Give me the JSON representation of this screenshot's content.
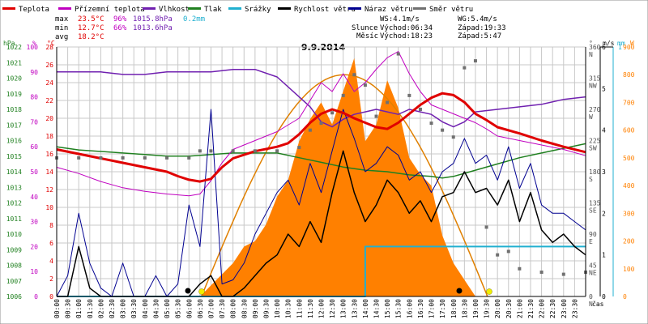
{
  "colors": {
    "teplota": "#e00000",
    "prizemni": "#c000c0",
    "vlhkost": "#7020b0",
    "tlak": "#208020",
    "srazky": "#20b0d0",
    "rychlost": "#000000",
    "naraz": "#000090",
    "smer": "#707070",
    "solar": "#ff8000",
    "sunline": "#e08000",
    "grid": "#c8c8c8"
  },
  "legend": [
    {
      "key": "teplota",
      "label": "Teplota"
    },
    {
      "key": "prizemni",
      "label": "Přízemní teplota"
    },
    {
      "key": "vlhkost",
      "label": "Vlhkost"
    },
    {
      "key": "tlak",
      "label": "Tlak"
    },
    {
      "key": "srazky",
      "label": "Srážky"
    },
    {
      "key": "rychlost",
      "label": "Rychlost větru"
    },
    {
      "key": "naraz",
      "label": "Náraz větru"
    },
    {
      "key": "smer",
      "label": "Směr větru"
    }
  ],
  "stats": {
    "max": {
      "label": "max",
      "temp": "23.5°C",
      "hum": "96%",
      "press": "1015.8hPa",
      "rain": "0.2mm"
    },
    "min": {
      "label": "min",
      "temp": "12.7°C",
      "hum": "66%",
      "press": "1013.6hPa"
    },
    "avg": {
      "label": "avg",
      "temp": "18.2°C"
    }
  },
  "wind_info": {
    "ws": "WS:4.1m/s",
    "wg": "WG:5.4m/s"
  },
  "sun_info": {
    "label": "Slunce",
    "rise": "Východ:06:34",
    "set": "Západ:19:33"
  },
  "moon_info": {
    "label": "Měsíc",
    "rise": "Východ:18:23",
    "set": "Západ:5:47"
  },
  "chart_data": {
    "type": "line",
    "title": "9.9.2014",
    "xlabel": "čas",
    "x_range": [
      0,
      24
    ],
    "x_ticks": [
      "00:00",
      "00:30",
      "01:00",
      "01:30",
      "02:00",
      "02:30",
      "03:00",
      "03:30",
      "04:00",
      "04:30",
      "05:00",
      "05:30",
      "06:00",
      "06:30",
      "07:00",
      "07:30",
      "08:00",
      "08:30",
      "09:00",
      "09:30",
      "10:00",
      "10:30",
      "11:00",
      "11:30",
      "12:00",
      "12:30",
      "13:00",
      "13:30",
      "14:00",
      "14:30",
      "15:00",
      "15:30",
      "16:00",
      "16:30",
      "17:00",
      "17:30",
      "18:00",
      "18:30",
      "19:00",
      "19:30",
      "20:00",
      "20:30",
      "21:00",
      "21:30",
      "22:00",
      "22:30",
      "23:00",
      "23:30"
    ],
    "axes": {
      "hpa": {
        "label": "hPa",
        "min": 1006,
        "max": 1022,
        "ticks": [
          1006,
          1007,
          1008,
          1009,
          1010,
          1011,
          1012,
          1013,
          1014,
          1015,
          1016,
          1017,
          1018,
          1019,
          1020,
          1021,
          1022
        ]
      },
      "pct": {
        "label": "%",
        "min": 0,
        "max": 100,
        "ticks": [
          0,
          10,
          20,
          30,
          40,
          50,
          60,
          70,
          80,
          90,
          100
        ]
      },
      "degc": {
        "label": "°C",
        "min": 0,
        "max": 28,
        "ticks": [
          0,
          2,
          4,
          6,
          8,
          10,
          12,
          14,
          16,
          18,
          20,
          22,
          24,
          26,
          28
        ]
      },
      "deg": {
        "label": "°",
        "min": 0,
        "max": 360,
        "ticks": [
          0,
          45,
          90,
          135,
          180,
          225,
          270,
          315,
          360
        ],
        "dir_labels": [
          "N",
          "NE",
          "E",
          "SE",
          "S",
          "SW",
          "W",
          "NW",
          "N"
        ]
      },
      "ms": {
        "label": "m/s",
        "min": 0,
        "max": 6,
        "ticks": [
          0,
          1,
          2,
          3,
          4,
          5,
          6
        ]
      },
      "mm": {
        "label": "mm",
        "min": 0,
        "max": 1,
        "ticks": [
          0,
          1
        ]
      },
      "w": {
        "label": "W",
        "min": 0,
        "max": 900,
        "ticks": [
          0,
          100,
          200,
          300,
          400,
          500,
          600,
          700,
          800,
          900
        ]
      }
    },
    "series": [
      {
        "key": "teplota",
        "name": "Teplota",
        "axis": "degc",
        "x": [
          0,
          1,
          2,
          3,
          4,
          5,
          5.5,
          6,
          6.5,
          7,
          7.5,
          8,
          9,
          10,
          10.5,
          11,
          11.5,
          12,
          12.5,
          13,
          13.5,
          14,
          14.5,
          15,
          15.5,
          16,
          16.5,
          17,
          17.5,
          18,
          18.5,
          19,
          19.5,
          20,
          21,
          22,
          23,
          24
        ],
        "y": [
          16.5,
          16.0,
          15.5,
          15.0,
          14.5,
          14.0,
          13.5,
          13.1,
          12.9,
          13.2,
          14.5,
          15.5,
          16.3,
          16.8,
          17.2,
          18.2,
          19.5,
          20.5,
          21.0,
          20.6,
          20.0,
          19.5,
          19.0,
          18.8,
          19.5,
          20.5,
          21.5,
          22.3,
          22.8,
          22.6,
          21.8,
          20.5,
          19.8,
          19.0,
          18.3,
          17.5,
          16.8,
          16.2
        ]
      },
      {
        "key": "prizemni",
        "name": "Přízemní teplota",
        "axis": "degc",
        "x": [
          0,
          1,
          2,
          3,
          4,
          5,
          6,
          6.5,
          7,
          7.5,
          8,
          9,
          10,
          11,
          11.5,
          12,
          12.5,
          13,
          13.5,
          14,
          14.5,
          15,
          15.5,
          16,
          16.5,
          17,
          17.5,
          18,
          18.5,
          19,
          19.5,
          20,
          21,
          22,
          23,
          24
        ],
        "y": [
          14.5,
          13.8,
          12.9,
          12.2,
          11.8,
          11.5,
          11.3,
          11.5,
          13.0,
          15.0,
          16.5,
          17.5,
          18.5,
          20.0,
          22.0,
          24.0,
          23.0,
          25.0,
          23.0,
          24.0,
          25.5,
          26.8,
          27.5,
          25.0,
          23.0,
          21.5,
          21.0,
          20.5,
          20.0,
          19.5,
          18.8,
          18.0,
          17.5,
          17.0,
          16.5,
          15.8
        ]
      },
      {
        "key": "vlhkost",
        "name": "Vlhkost",
        "axis": "pct",
        "x": [
          0,
          1,
          2,
          3,
          4,
          5,
          6,
          7,
          8,
          9,
          10,
          11,
          11.5,
          12,
          12.5,
          13,
          13.5,
          14,
          14.5,
          15,
          15.5,
          16,
          16.5,
          17,
          17.5,
          18,
          18.5,
          19,
          20,
          21,
          22,
          23,
          24
        ],
        "y": [
          90,
          90,
          90,
          89,
          89,
          90,
          90,
          90,
          91,
          91,
          88,
          80,
          76,
          70,
          68,
          71,
          73,
          74,
          75,
          74,
          73,
          75,
          74,
          73,
          70,
          68,
          70,
          74,
          75,
          76,
          77,
          79,
          80
        ]
      },
      {
        "key": "tlak",
        "name": "Tlak",
        "axis": "hpa",
        "x": [
          0,
          1,
          2,
          3,
          4,
          5,
          6,
          7,
          8,
          9,
          10,
          11,
          12,
          13,
          14,
          15,
          16,
          17,
          17.5,
          18,
          19,
          20,
          21,
          22,
          23,
          24
        ],
        "y": [
          1015.6,
          1015.4,
          1015.3,
          1015.2,
          1015.1,
          1015.0,
          1015.0,
          1015.1,
          1015.2,
          1015.2,
          1015.2,
          1014.9,
          1014.6,
          1014.3,
          1014.1,
          1014.0,
          1013.8,
          1013.7,
          1013.6,
          1013.7,
          1014.1,
          1014.5,
          1014.9,
          1015.2,
          1015.5,
          1015.8
        ]
      },
      {
        "key": "rychlost",
        "name": "Rychlost větru",
        "axis": "ms",
        "x": [
          0,
          0.5,
          1,
          1.5,
          2,
          2.5,
          3,
          3.5,
          4,
          4.5,
          5,
          5.5,
          6,
          6.5,
          7,
          7.5,
          8,
          8.5,
          9,
          9.5,
          10,
          10.5,
          11,
          11.5,
          12,
          12.5,
          13,
          13.5,
          14,
          14.5,
          15,
          15.5,
          16,
          16.5,
          17,
          17.5,
          18,
          18.5,
          19,
          19.5,
          20,
          20.5,
          21,
          21.5,
          22,
          22.5,
          23,
          23.5,
          24
        ],
        "y": [
          0,
          0,
          1.2,
          0.2,
          0,
          0,
          0,
          0,
          0,
          0,
          0,
          0,
          0,
          0.3,
          0.5,
          0,
          0,
          0.2,
          0.5,
          0.8,
          1.0,
          1.5,
          1.2,
          1.8,
          1.3,
          2.5,
          3.5,
          2.5,
          1.8,
          2.2,
          2.8,
          2.5,
          2.0,
          2.3,
          1.8,
          2.4,
          2.5,
          3.0,
          2.5,
          2.6,
          2.2,
          2.8,
          1.8,
          2.5,
          1.6,
          1.3,
          1.5,
          1.2,
          1.0
        ]
      },
      {
        "key": "naraz",
        "name": "Náraz větru",
        "axis": "ms",
        "x": [
          0,
          0.5,
          1,
          1.5,
          2,
          2.5,
          3,
          3.5,
          4,
          4.5,
          5,
          5.5,
          6,
          6.5,
          7,
          7.5,
          8,
          8.5,
          9,
          9.5,
          10,
          10.5,
          11,
          11.5,
          12,
          12.5,
          13,
          13.5,
          14,
          14.5,
          15,
          15.5,
          16,
          16.5,
          17,
          17.5,
          18,
          18.5,
          19,
          19.5,
          20,
          20.5,
          21,
          21.5,
          22,
          22.5,
          23,
          23.5,
          24
        ],
        "y": [
          0,
          0.5,
          2.0,
          0.8,
          0.2,
          0,
          0.8,
          0,
          0,
          0.5,
          0,
          0.3,
          2.2,
          1.2,
          4.5,
          0.3,
          0.4,
          0.8,
          1.5,
          2.0,
          2.5,
          2.8,
          2.2,
          3.2,
          2.5,
          3.5,
          4.5,
          3.8,
          3.0,
          3.2,
          3.6,
          3.4,
          2.8,
          3.0,
          2.5,
          3.0,
          3.2,
          3.8,
          3.2,
          3.4,
          2.8,
          3.6,
          2.6,
          3.2,
          2.2,
          2.0,
          2.0,
          1.8,
          1.6
        ]
      },
      {
        "key": "smer",
        "name": "Směr větru",
        "axis": "deg",
        "x": [
          0,
          1,
          2,
          3,
          4,
          5,
          6,
          6.5,
          7,
          8,
          9,
          10,
          11,
          11.5,
          12,
          12.5,
          13,
          13.5,
          14,
          14.5,
          15,
          15.5,
          16,
          16.5,
          17,
          17.5,
          18,
          18.5,
          19,
          19.5,
          20,
          20.5,
          21,
          22,
          23,
          24
        ],
        "y": [
          200,
          200,
          200,
          200,
          200,
          200,
          200,
          210,
          210,
          210,
          210,
          210,
          215,
          240,
          250,
          265,
          290,
          320,
          305,
          260,
          280,
          350,
          290,
          270,
          250,
          240,
          230,
          330,
          340,
          100,
          60,
          65,
          40,
          35,
          32,
          35
        ]
      },
      {
        "key": "solar",
        "name": "Solar",
        "axis": "w",
        "x": [
          6.5,
          7,
          7.5,
          8,
          8.5,
          9,
          9.5,
          10,
          10.5,
          11,
          11.5,
          12,
          12.5,
          13,
          13.5,
          14,
          14.5,
          15,
          15.5,
          16,
          16.5,
          17,
          17.5,
          18,
          18.5,
          19
        ],
        "y": [
          0,
          40,
          80,
          120,
          180,
          200,
          260,
          360,
          420,
          560,
          640,
          700,
          620,
          740,
          860,
          560,
          620,
          780,
          680,
          500,
          440,
          400,
          220,
          120,
          60,
          0
        ]
      },
      {
        "key": "srazky",
        "name": "Srážky",
        "axis": "mm",
        "x": [
          0,
          14.0,
          14.0,
          24
        ],
        "y": [
          0,
          0,
          0.2,
          0.2
        ]
      }
    ],
    "sun_curve": {
      "axis": "w",
      "rise": 6.57,
      "set": 19.55,
      "peak": 800
    }
  }
}
